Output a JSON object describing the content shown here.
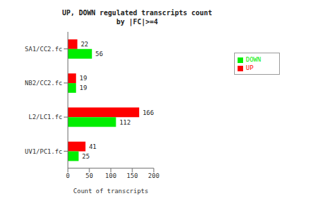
{
  "chart_data": {
    "type": "bar",
    "title": "UP, DOWN regulated transcripts count",
    "subtitle": "by |FC|>=4",
    "orientation": "horizontal",
    "categories": [
      "SA1/CC2.fc",
      "NB2/CC2.fc",
      "L2/LC1.fc",
      "UV1/PC1.fc"
    ],
    "series": [
      {
        "name": "UP",
        "color": "#ff0000",
        "values": [
          22,
          19,
          166,
          41
        ]
      },
      {
        "name": "DOWN",
        "color": "#00ee00",
        "values": [
          56,
          19,
          112,
          25
        ]
      }
    ],
    "xlabel": "Count of transcripts",
    "xlim": [
      0,
      200
    ],
    "xticks": [
      0,
      50,
      100,
      150,
      200
    ],
    "data_labels": true,
    "legend": "right",
    "grid": false
  }
}
